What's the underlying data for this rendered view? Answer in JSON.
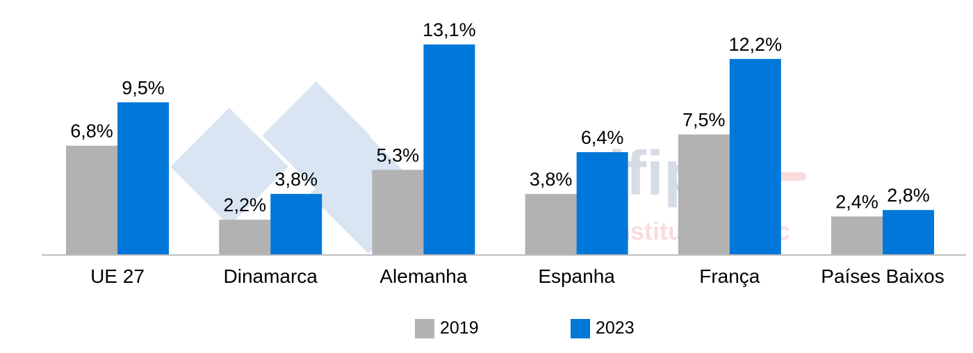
{
  "chart_data": {
    "type": "bar",
    "categories": [
      "UE 27",
      "Dinamarca",
      "Alemanha",
      "Espanha",
      "França",
      "Países Baixos"
    ],
    "series": [
      {
        "name": "2019",
        "color": "#b2b2b2",
        "values": [
          6.8,
          2.2,
          5.3,
          3.8,
          7.5,
          2.4
        ],
        "labels": [
          "6,8%",
          "2,2%",
          "5,3%",
          "3,8%",
          "7,5%",
          "2,4%"
        ]
      },
      {
        "name": "2023",
        "color": "#0077d9",
        "values": [
          9.5,
          3.8,
          13.1,
          6.4,
          12.2,
          2.8
        ],
        "labels": [
          "9,5%",
          "3,8%",
          "13,1%",
          "6,4%",
          "12,2%",
          "2,8%"
        ]
      }
    ],
    "title": "",
    "xlabel": "",
    "ylabel": "",
    "ylim": [
      0,
      14
    ],
    "grid": false,
    "legend_position": "bottom"
  },
  "watermark": {
    "logo": "333",
    "brand": "ifip",
    "brand_sub": "Institut du porc"
  }
}
